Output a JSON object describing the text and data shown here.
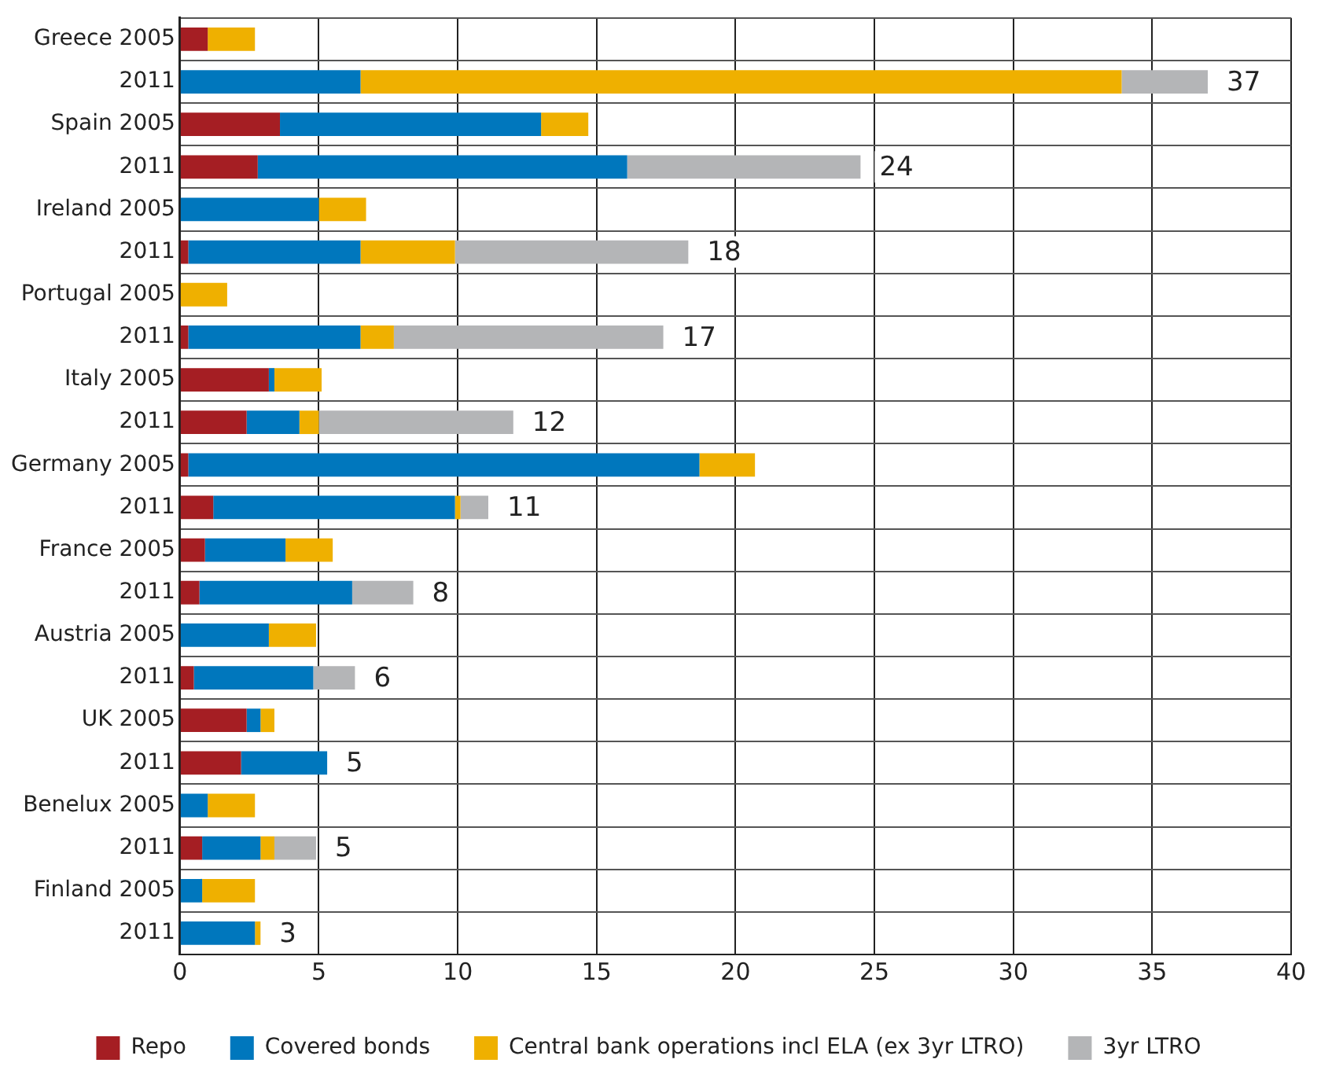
{
  "chart_data": {
    "type": "bar",
    "orientation": "horizontal",
    "stacked": true,
    "categories": [
      "Greece 2005",
      "2011",
      "Spain 2005",
      "2011",
      "Ireland 2005",
      "2011",
      "Portugal 2005",
      "2011",
      "Italy 2005",
      "2011",
      "Germany 2005",
      "2011",
      "France 2005",
      "2011",
      "Austria 2005",
      "2011",
      "UK 2005",
      "2011",
      "Benelux 2005",
      "2011",
      "Finland 2005",
      "2011"
    ],
    "series": [
      {
        "name": "Repo",
        "color": "#a51e23",
        "values": [
          1.0,
          0,
          3.6,
          2.8,
          0,
          0.3,
          0,
          0.3,
          3.2,
          2.4,
          0.3,
          1.2,
          0.9,
          0.7,
          0,
          0.5,
          2.4,
          2.2,
          0,
          0.8,
          0,
          0
        ]
      },
      {
        "name": "Covered bonds",
        "color": "#0077bd",
        "values": [
          0,
          6.5,
          9.4,
          13.3,
          5.0,
          6.2,
          0,
          6.2,
          0.2,
          1.9,
          18.4,
          8.7,
          2.9,
          5.5,
          3.2,
          4.3,
          0.5,
          3.1,
          1.0,
          2.1,
          0.8,
          2.7
        ]
      },
      {
        "name": "Central bank operations incl ELA (ex 3yr LTRO)",
        "color": "#efb000",
        "values": [
          1.7,
          27.4,
          1.7,
          0,
          1.7,
          3.4,
          1.7,
          1.2,
          1.7,
          0.7,
          2.0,
          0.2,
          1.7,
          0,
          1.7,
          0,
          0.5,
          0,
          1.7,
          0.5,
          1.9,
          0.2
        ]
      },
      {
        "name": "3yr LTRO",
        "color": "#b4b5b7",
        "values": [
          0,
          3.1,
          0,
          8.4,
          0,
          8.4,
          0,
          9.7,
          0,
          7.0,
          0,
          1.0,
          0,
          2.2,
          0,
          1.5,
          0,
          0,
          0,
          1.5,
          0,
          0
        ]
      }
    ],
    "totals": [
      null,
      "37",
      null,
      "24",
      null,
      "18",
      null,
      "17",
      null,
      "12",
      null,
      "11",
      null,
      "8",
      null,
      "6",
      null,
      "5",
      null,
      "5",
      null,
      "3"
    ],
    "xlim": [
      0,
      40
    ],
    "xticks": [
      0,
      5,
      10,
      15,
      20,
      25,
      30,
      35,
      40
    ],
    "grid": true,
    "legend": "bottom"
  }
}
